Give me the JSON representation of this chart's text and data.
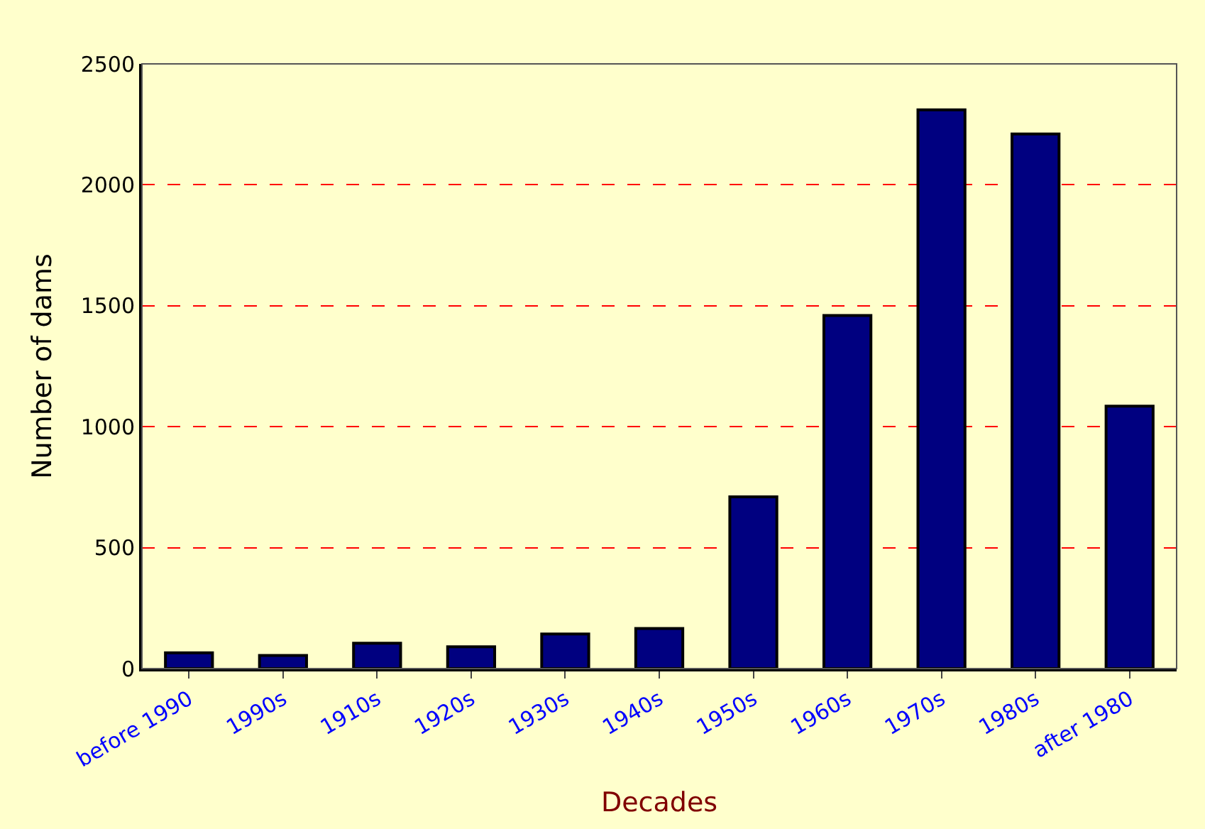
{
  "chart_data": {
    "type": "bar",
    "xlabel": "Decades",
    "ylabel": "Number of dams",
    "categories": [
      "before 1990",
      "1990s",
      "1910s",
      "1920s",
      "1930s",
      "1940s",
      "1950s",
      "1960s",
      "1970s",
      "1980s",
      "after 1980"
    ],
    "values": [
      65,
      54,
      105,
      90,
      143,
      166,
      710,
      1460,
      2310,
      2210,
      1085
    ],
    "color": "#000080",
    "ylim": [
      0,
      2500
    ],
    "yticks": [
      0,
      500,
      1000,
      1500,
      2000,
      2500
    ],
    "grid": "y"
  }
}
